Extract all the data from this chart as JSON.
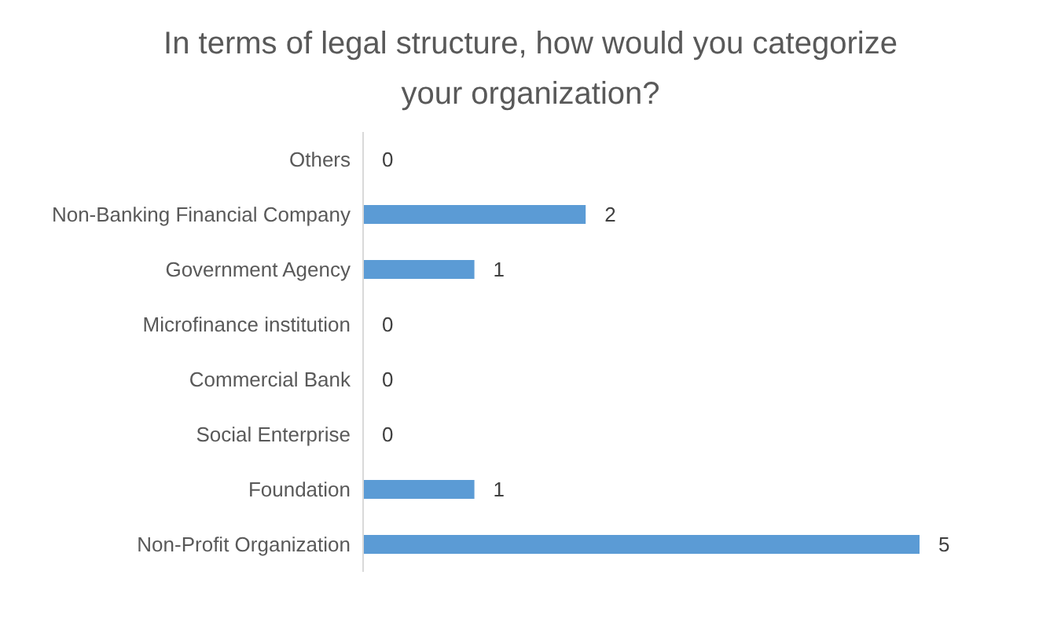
{
  "chart_data": {
    "type": "bar",
    "orientation": "horizontal",
    "title": "In terms of legal structure, how would you categorize your organization?",
    "categories": [
      "Others",
      "Non-Banking Financial Company",
      "Government Agency",
      "Microfinance institution",
      "Commercial Bank",
      "Social Enterprise",
      "Foundation",
      "Non-Profit Organization"
    ],
    "values": [
      0,
      2,
      1,
      0,
      0,
      0,
      1,
      5
    ],
    "color": "#5b9bd5",
    "data_labels": true,
    "grid": false
  }
}
